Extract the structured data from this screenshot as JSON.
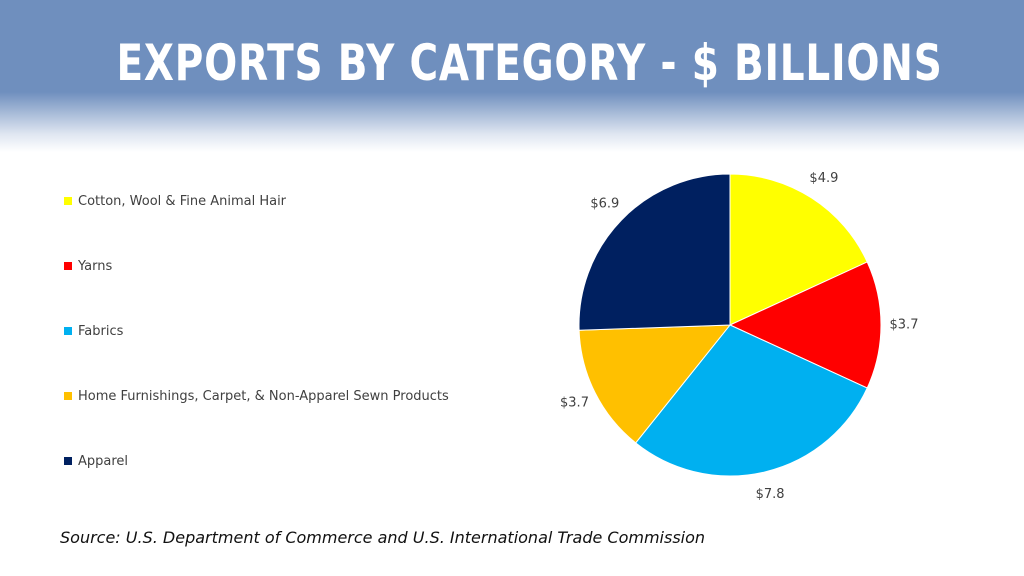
{
  "header": {
    "title": "EXPORTS BY CATEGORY - $ BILLIONS"
  },
  "footer": {
    "source": "Source: U.S. Department of Commerce and U.S. International Trade Commission"
  },
  "chart_data": {
    "type": "pie",
    "title": "EXPORTS BY CATEGORY - $ BILLIONS",
    "legend_position": "left",
    "start_angle_degrees": 0,
    "direction": "clockwise",
    "slices": [
      {
        "name": "Cotton, Wool & Fine Animal Hair",
        "value": 4.9,
        "label": "$4.9",
        "color": "#ffff00"
      },
      {
        "name": "Yarns",
        "value": 3.7,
        "label": "$3.7",
        "color": "#ff0000"
      },
      {
        "name": "Fabrics",
        "value": 7.8,
        "label": "$7.8",
        "color": "#00b0f0"
      },
      {
        "name": "Home Furnishings, Carpet, & Non-Apparel Sewn Products",
        "value": 3.7,
        "label": "$3.7",
        "color": "#ffc000"
      },
      {
        "name": "Apparel",
        "value": 6.9,
        "label": "$6.9",
        "color": "#002060"
      }
    ]
  }
}
